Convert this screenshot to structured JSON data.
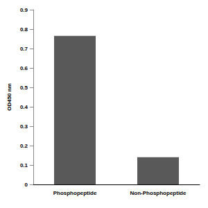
{
  "chart_data": {
    "type": "bar",
    "y_label": "OD450 nm",
    "categories": [
      "Phosphopeptide",
      "Non-Phosphopeptide"
    ],
    "values": [
      0.765,
      0.14
    ],
    "color": "#595959",
    "ylim": [
      0,
      0.9
    ],
    "yticks": [
      0,
      0.1,
      0.2,
      0.3,
      0.4,
      0.5,
      0.6,
      0.7,
      0.8,
      0.9
    ],
    "grid": false
  }
}
